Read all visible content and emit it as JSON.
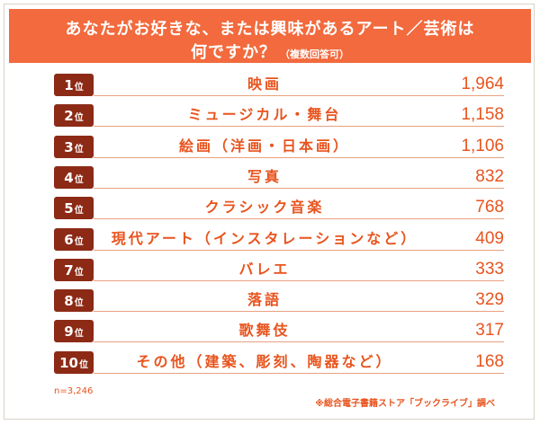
{
  "header": {
    "line1": "あなたがお好きな、または興味があるアート／芸術は",
    "line2": "何ですか？",
    "note": "（複数回答可）"
  },
  "footer": {
    "n": "n=3,246",
    "source": "※総合電子書籍ストア「ブックライブ」調べ"
  },
  "rank_suffix": "位",
  "colors": {
    "header_bg": "#f26a3d",
    "rank_bg": "#8c2a16",
    "text_accent": "#e8541e"
  },
  "chart_data": {
    "type": "table",
    "title": "あなたがお好きな、または興味があるアート／芸術は何ですか？（複数回答可）",
    "rows": [
      {
        "rank": "1",
        "label": "映画",
        "value": "1,964"
      },
      {
        "rank": "2",
        "label": "ミュージカル・舞台",
        "value": "1,158"
      },
      {
        "rank": "3",
        "label": "絵画（洋画・日本画）",
        "value": "1,106"
      },
      {
        "rank": "4",
        "label": "写真",
        "value": "832"
      },
      {
        "rank": "5",
        "label": "クラシック音楽",
        "value": "768"
      },
      {
        "rank": "6",
        "label": "現代アート（インスタレーションなど）",
        "value": "409"
      },
      {
        "rank": "7",
        "label": "バレエ",
        "value": "333"
      },
      {
        "rank": "8",
        "label": "落語",
        "value": "329"
      },
      {
        "rank": "9",
        "label": "歌舞伎",
        "value": "317"
      },
      {
        "rank": "10",
        "label": "その他（建築、彫刻、陶器など）",
        "value": "168"
      }
    ]
  }
}
